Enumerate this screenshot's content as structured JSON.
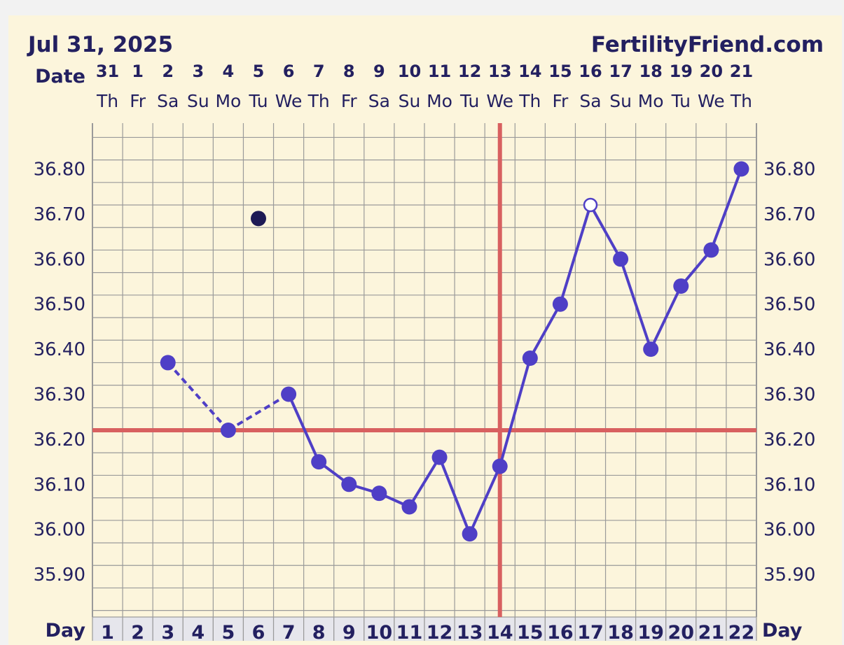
{
  "header": {
    "chart_date": "Jul 31, 2025",
    "site": "FertilityFriend.com"
  },
  "colors": {
    "temp_line": "#4f3fc6",
    "coverline": "#d86060",
    "grid": "#9a9a9a",
    "text": "#232060",
    "outlier_point": "#1e1a55",
    "background": "#fcf5dc",
    "day_cell": "#e6e6ec"
  },
  "chart_data": {
    "type": "line",
    "title": "",
    "date_row_label": "Date",
    "day_row_label": "Day",
    "dates": [
      "31",
      "1",
      "2",
      "3",
      "4",
      "5",
      "6",
      "7",
      "8",
      "9",
      "10",
      "11",
      "12",
      "13",
      "14",
      "15",
      "16",
      "17",
      "18",
      "19",
      "20",
      "21"
    ],
    "weekdays": [
      "Th",
      "Fr",
      "Sa",
      "Su",
      "Mo",
      "Tu",
      "We",
      "Th",
      "Fr",
      "Sa",
      "Su",
      "Mo",
      "Tu",
      "We",
      "Th",
      "Fr",
      "Sa",
      "Su",
      "Mo",
      "Tu",
      "We",
      "Th"
    ],
    "cycle_days": [
      1,
      2,
      3,
      4,
      5,
      6,
      7,
      8,
      9,
      10,
      11,
      12,
      13,
      14,
      15,
      16,
      17,
      18,
      19,
      20,
      21,
      22
    ],
    "y_tick_labels": [
      "36.80",
      "36.70",
      "36.60",
      "36.50",
      "36.40",
      "36.30",
      "36.20",
      "36.10",
      "36.00",
      "35.90"
    ],
    "ylim": [
      35.82,
      36.9
    ],
    "grid": true,
    "series": [
      {
        "points": [
          {
            "day": 3,
            "temp": 36.37
          },
          {
            "day": 5,
            "temp": 36.22
          },
          {
            "day": 7,
            "temp": 36.3
          },
          {
            "day": 8,
            "temp": 36.15
          },
          {
            "day": 9,
            "temp": 36.1
          },
          {
            "day": 10,
            "temp": 36.08
          },
          {
            "day": 11,
            "temp": 36.05
          },
          {
            "day": 12,
            "temp": 36.16
          },
          {
            "day": 13,
            "temp": 35.99
          },
          {
            "day": 14,
            "temp": 36.14
          },
          {
            "day": 15,
            "temp": 36.38
          },
          {
            "day": 16,
            "temp": 36.5
          },
          {
            "day": 17,
            "temp": 36.72,
            "hollow": true
          },
          {
            "day": 18,
            "temp": 36.6
          },
          {
            "day": 19,
            "temp": 36.4
          },
          {
            "day": 20,
            "temp": 36.54
          },
          {
            "day": 21,
            "temp": 36.62
          },
          {
            "day": 22,
            "temp": 36.8
          }
        ],
        "dashed_through_day": 7
      }
    ],
    "outliers": [
      {
        "day": 6,
        "temp": 36.69
      }
    ],
    "coverline_temp": 36.22,
    "ovulation_day": 14
  }
}
